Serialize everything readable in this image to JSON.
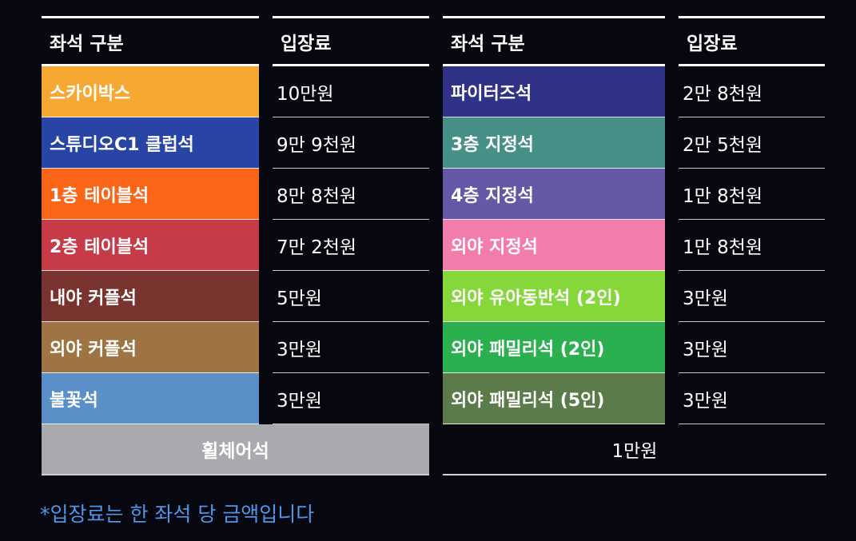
{
  "headers": {
    "left_seat": "좌석 구분",
    "left_price": "입장료",
    "right_seat": "좌석 구분",
    "right_price": "입장료"
  },
  "left_rows": [
    {
      "seat": "스카이박스",
      "price": "10만원",
      "color": "#f7a833"
    },
    {
      "seat": "스튜디오C1 클럽석",
      "price": "9만 9천원",
      "color": "#2844a4"
    },
    {
      "seat": "1층 테이블석",
      "price": "8만 8천원",
      "color": "#fa6518"
    },
    {
      "seat": "2층 테이블석",
      "price": "7만 2천원",
      "color": "#c73a48"
    },
    {
      "seat": "내야 커플석",
      "price": "5만원",
      "color": "#7a3430"
    },
    {
      "seat": "외야 커플석",
      "price": "3만원",
      "color": "#9f7444"
    },
    {
      "seat": "불꽃석",
      "price": "3만원",
      "color": "#5a8fc8"
    }
  ],
  "right_rows": [
    {
      "seat": "파이터즈석",
      "price": "2만 8천원",
      "color": "#303288"
    },
    {
      "seat": "3층 지정석",
      "price": "2만 5천원",
      "color": "#469087"
    },
    {
      "seat": "4층 지정석",
      "price": "1만 8천원",
      "color": "#6658a6"
    },
    {
      "seat": "외야 지정석",
      "price": "1만 8천원",
      "color": "#f27cab"
    },
    {
      "seat": "외야 유아동반석 (2인)",
      "price": "3만원",
      "color": "#86d83a"
    },
    {
      "seat": "외야 패밀리석 (2인)",
      "price": "3만원",
      "color": "#2bb04f"
    },
    {
      "seat": "외야 패밀리석 (5인)",
      "price": "3만원",
      "color": "#5b7b4a"
    }
  ],
  "wheelchair": {
    "seat": "휠체어석",
    "price": "1만원",
    "color": "#a9a9ae"
  },
  "note": "*입장료는 한 좌석 당 금액입니다",
  "note_color": "#4f96e8"
}
